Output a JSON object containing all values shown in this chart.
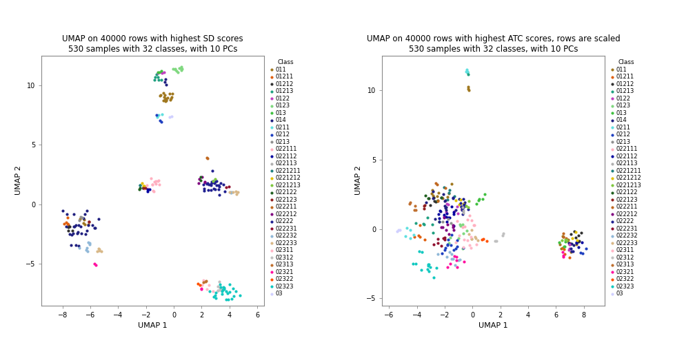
{
  "title1": "UMAP on 40000 rows with highest SD scores\n530 samples with 32 classes, with 10 PCs",
  "title2": "UMAP on 40000 rows with highest ATC scores, rows are scaled\n530 samples with 32 classes, with 10 PCs",
  "xlabel": "UMAP 1",
  "ylabel": "UMAP 2",
  "legend_title": "Class",
  "classes": [
    "011",
    "01211",
    "01212",
    "01213",
    "0122",
    "0123",
    "013",
    "014",
    "0211",
    "0212",
    "0213",
    "022111",
    "022112",
    "022113",
    "0221211",
    "0221212",
    "0221213",
    "022122",
    "022123",
    "022211",
    "022212",
    "02222",
    "022231",
    "022232",
    "022233",
    "02311",
    "02312",
    "02313",
    "02321",
    "02322",
    "02323",
    "03"
  ],
  "colors": [
    "#A07820",
    "#E06010",
    "#303030",
    "#20A080",
    "#C040C0",
    "#80D880",
    "#40C040",
    "#202080",
    "#60E0E0",
    "#2040C0",
    "#909090",
    "#FFB0C0",
    "#0000A0",
    "#B0B0B0",
    "#208080",
    "#E0C000",
    "#80C840",
    "#206020",
    "#902020",
    "#C06820",
    "#800080",
    "#202090",
    "#901030",
    "#90B8D8",
    "#D8B888",
    "#FFB8C8",
    "#C0C0C0",
    "#C07030",
    "#FF10A0",
    "#FF5000",
    "#10C8C0",
    "#D0D0FF"
  ],
  "plot1": {
    "xlim": [
      -9.5,
      6.5
    ],
    "ylim": [
      -8.5,
      12.5
    ],
    "xticks": [
      -8,
      -6,
      -4,
      -2,
      0,
      2,
      4,
      6
    ],
    "yticks": [
      -5,
      0,
      5,
      10
    ]
  },
  "plot2": {
    "xlim": [
      -6.5,
      9.5
    ],
    "ylim": [
      -5.5,
      12.5
    ],
    "xticks": [
      -6,
      -4,
      -2,
      0,
      2,
      4,
      6,
      8
    ],
    "yticks": [
      -5,
      0,
      5,
      10
    ]
  }
}
